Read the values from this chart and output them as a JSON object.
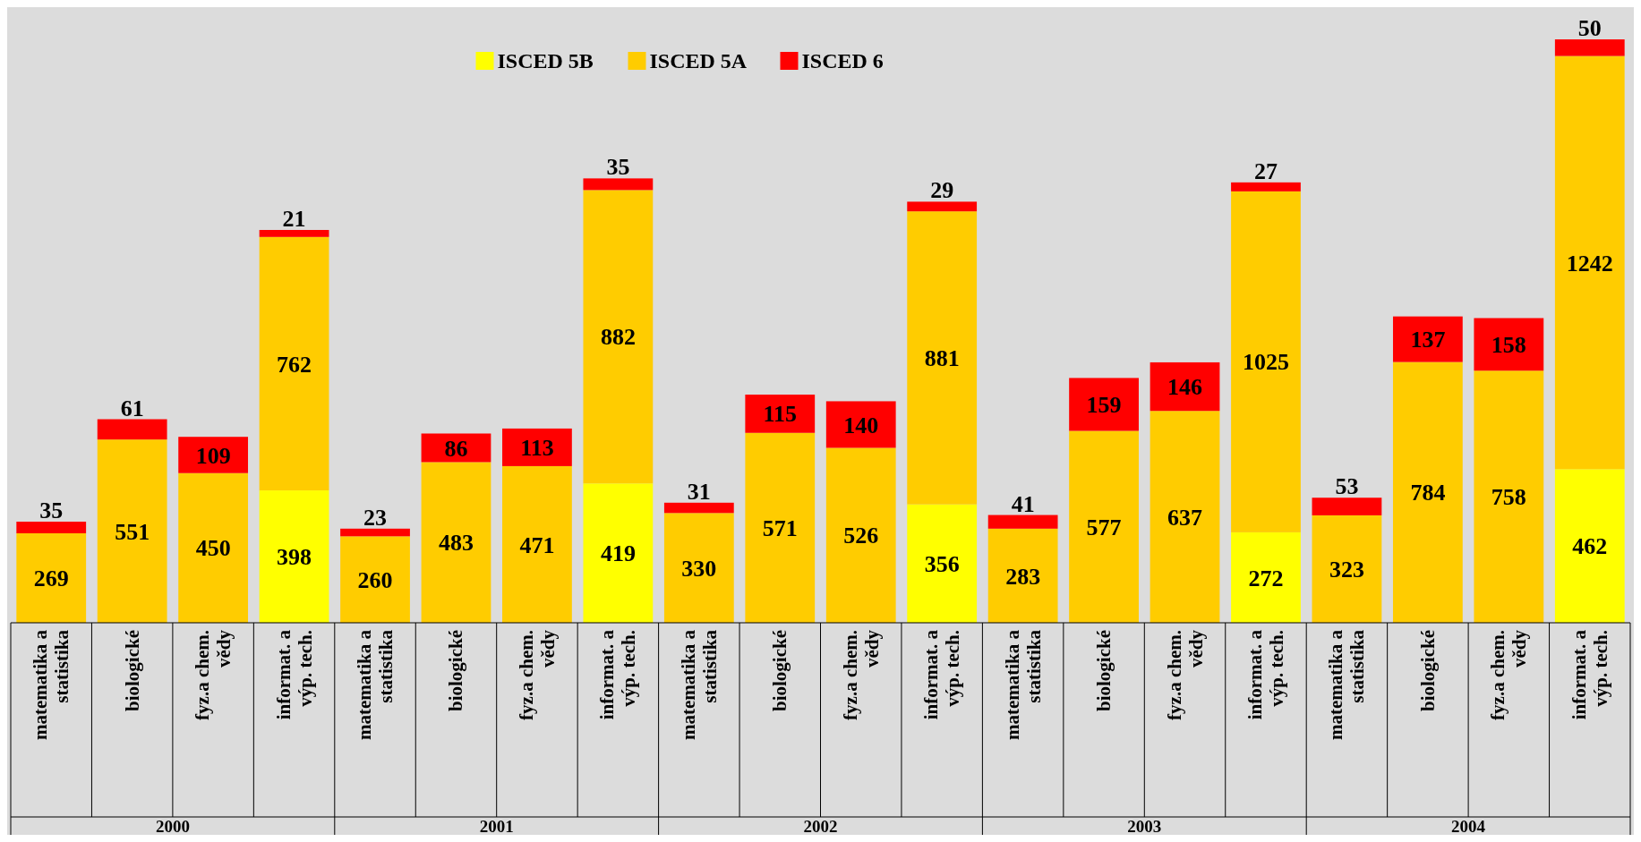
{
  "chart_data": {
    "type": "bar",
    "stacked": true,
    "data_labels": true,
    "legend": "top",
    "categories": [
      "matematika a\nstatistika",
      "biologické",
      "fyz.a chem.\nvědy",
      "informat. a\nvýp. tech.",
      "matematika a\nstatistika",
      "biologické",
      "fyz.a chem.\nvědy",
      "informat. a\nvýp. tech.",
      "matematika a\nstatistika",
      "biologické",
      "fyz.a chem.\nvědy",
      "informat. a\nvýp. tech.",
      "matematika a\nstatistika",
      "biologické",
      "fyz.a chem.\nvědy",
      "informat. a\nvýp. tech.",
      "matematika a\nstatistika",
      "biologické",
      "fyz.a chem.\nvědy",
      "informat. a\nvýp. tech."
    ],
    "series": [
      {
        "name": "ISCED 5B",
        "color": "#ffff00",
        "values": [
          null,
          null,
          null,
          398,
          null,
          null,
          null,
          419,
          null,
          null,
          null,
          356,
          null,
          null,
          null,
          272,
          null,
          null,
          null,
          462
        ]
      },
      {
        "name": "ISCED 5A",
        "color": "#ffcc00",
        "values": [
          269,
          551,
          450,
          762,
          260,
          483,
          471,
          882,
          330,
          571,
          526,
          881,
          283,
          577,
          637,
          1025,
          323,
          784,
          758,
          1242
        ]
      },
      {
        "name": "ISCED 6",
        "color": "#ff0000",
        "values": [
          35,
          61,
          109,
          21,
          23,
          86,
          113,
          35,
          31,
          115,
          140,
          29,
          41,
          159,
          146,
          27,
          53,
          137,
          158,
          50
        ]
      }
    ],
    "annotations": [
      "2000",
      "2001",
      "2002",
      "2003",
      "2004"
    ]
  }
}
